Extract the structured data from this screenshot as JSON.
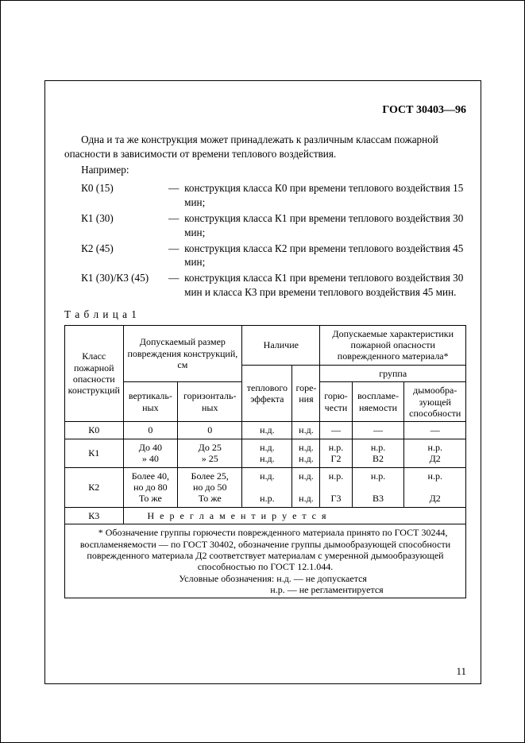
{
  "doc_header": "ГОСТ 30403—96",
  "intro_para": "Одна и та же конструкция может принадлежать к различным классам пожарной опасности в зависимости от времени теплового воздействия.",
  "example_label": "Например:",
  "examples": [
    {
      "code": "К0 (15)",
      "text": "конструкция класса К0 при времени теплового воздействия 15 мин;"
    },
    {
      "code": "К1 (30)",
      "text": "конструкция класса К1 при времени теплового воздействия 30 мин;"
    },
    {
      "code": "К2 (45)",
      "text": "конструкция класса К2 при времени теплового воздействия 45 мин;"
    },
    {
      "code": "К1 (30)/К3 (45)",
      "text": "конструкция класса К1 при времени теплового воздействия 30 мин и класса К3 при времени теплового воздействия 45 мин."
    }
  ],
  "table_caption": "Т а б л и ц а  1",
  "headers": {
    "col_class": "Класс пожарной опасности конструк­ций",
    "col_damage": "Допускаемый размер повреждения конструк­ций, см",
    "col_presence": "Наличие",
    "col_chars": "Допускаемые характеристи­ки пожарной опасности поврежденного материала*",
    "sub_vertical": "вертикаль­ных",
    "sub_horizontal": "горизонталь­ных",
    "sub_thermal": "теплового эффекта",
    "sub_burning": "горе­ния",
    "sub_group": "группа",
    "sub_flammability": "горю­чести",
    "sub_ignitability": "воспламе­няемости",
    "sub_smoke": "дымообра­зующей способнос­ти"
  },
  "rows": [
    {
      "cls": "К0",
      "v": "0",
      "h": "0",
      "te": "н.д.",
      "bu": "н.д.",
      "g1": "—",
      "g2": "—",
      "g3": "—"
    },
    {
      "cls": "К1",
      "v": "До 40\n»   40",
      "h": "До 25\n»   25",
      "te": "н.д.\nн.д.",
      "bu": "н.д.\nн.д.",
      "g1": "н.р.\nГ2",
      "g2": "н.р.\nВ2",
      "g3": "н.р.\nД2"
    },
    {
      "cls": "К2",
      "v": "Более 40,\nно до 80\nТо же",
      "h": "Более 25,\nно до 50\nТо же",
      "te": "н.д.\n\nн.р.",
      "bu": "н.д.\n\nн.д.",
      "g1": "н.р.\n\nГ3",
      "g2": "н.р.\n\nВ3",
      "g3": "н.р.\n\nД2"
    }
  ],
  "k3_label": "К3",
  "k3_text": "Н е   р е г л а м е н т и р у е т с я",
  "footnote1": "* Обозначение группы горючести поврежденного материала принято по ГОСТ 30244, воспламеняемости — по ГОСТ 30402, обозначение группы дымообразующей способности поврежденного материала Д2 соответствует материалам с умеренной ды­мообразующей способностью по ГОСТ 12.1.044.",
  "footnote2a": "Условные обозначения:  н.д. — не допускается",
  "footnote2b": "н.р. — не регламентируется",
  "page_number": "11"
}
